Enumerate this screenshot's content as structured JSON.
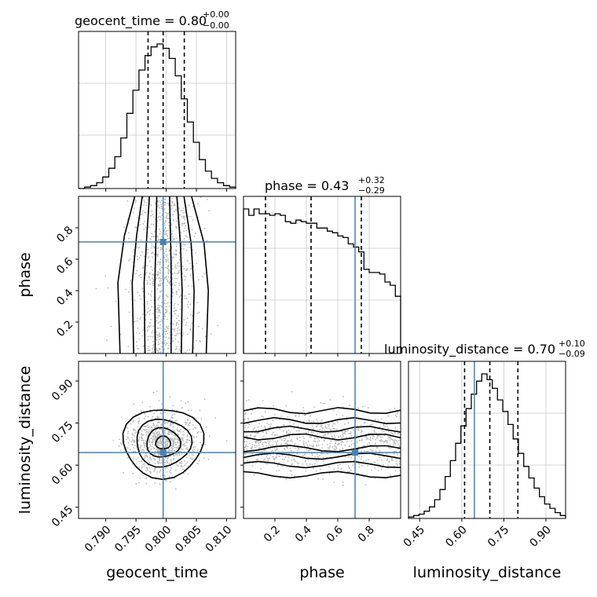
{
  "chart_data": {
    "type": "corner",
    "parameters": [
      "geocent_time",
      "phase",
      "luminosity_distance"
    ],
    "ranges": {
      "geocent_time": [
        0.7855,
        0.8115
      ],
      "phase": [
        0.0,
        1.0
      ],
      "luminosity_distance": [
        0.41,
        0.97
      ]
    },
    "injection": {
      "geocent_time": 0.7995,
      "phase": 0.71,
      "luminosity_distance": 0.645
    },
    "quantiles": {
      "geocent_time": [
        0.797,
        0.7995,
        0.803
      ],
      "phase": [
        0.14,
        0.43,
        0.75
      ],
      "luminosity_distance": [
        0.61,
        0.7,
        0.8
      ]
    },
    "titles": {
      "geocent_time": {
        "label": "geocent_time = 0.80",
        "up": "+0.00",
        "down": "−0.00"
      },
      "phase": {
        "label": "phase = 0.43",
        "up": "+0.32",
        "down": "−0.29"
      },
      "luminosity_distance": {
        "label": "luminosity_distance = 0.70",
        "up": "+0.10",
        "down": "−0.09"
      }
    },
    "axis_labels": {
      "x": [
        "geocent_time",
        "phase",
        "luminosity_distance"
      ],
      "y": [
        "phase",
        "luminosity_distance"
      ]
    },
    "ticks": {
      "geocent_time": [
        0.79,
        0.795,
        0.8,
        0.805,
        0.81
      ],
      "geocent_time_labels": [
        "0.790",
        "0.795",
        "0.800",
        "0.805",
        "0.810"
      ],
      "phase": [
        0.2,
        0.4,
        0.6,
        0.8
      ],
      "phase_labels": [
        "0.2",
        "0.4",
        "0.6",
        "0.8"
      ],
      "luminosity_distance": [
        0.45,
        0.6,
        0.75,
        0.9
      ],
      "luminosity_distance_labels": [
        "0.45",
        "0.60",
        "0.75",
        "0.90"
      ]
    },
    "histograms": {
      "geocent_time": [
        0,
        1,
        2,
        4,
        8,
        14,
        22,
        35,
        52,
        68,
        82,
        92,
        98,
        100,
        97,
        90,
        78,
        62,
        46,
        32,
        20,
        12,
        7,
        4,
        2,
        1
      ],
      "phase": [
        91,
        87,
        91,
        88,
        88,
        87,
        88,
        87,
        83,
        82,
        84,
        83,
        82,
        82,
        79,
        79,
        77,
        76,
        74,
        73,
        69,
        67,
        64,
        53,
        51,
        51,
        50,
        45,
        43,
        36
      ],
      "luminosity_distance": [
        1,
        2,
        3,
        5,
        8,
        13,
        20,
        29,
        40,
        52,
        64,
        76,
        86,
        95,
        100,
        96,
        90,
        82,
        74,
        65,
        55,
        45,
        36,
        28,
        21,
        15,
        10,
        7,
        4,
        2
      ]
    }
  }
}
